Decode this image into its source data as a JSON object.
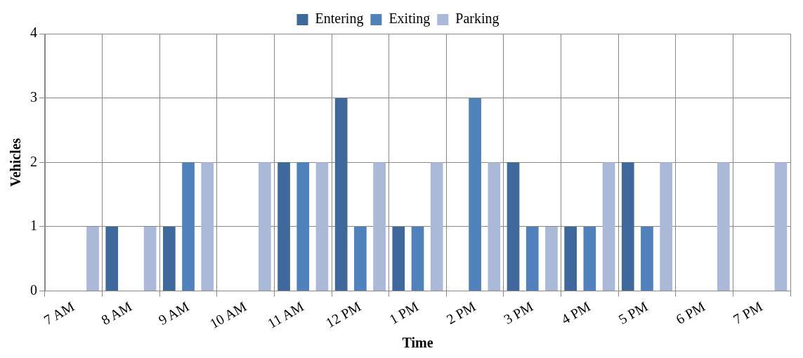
{
  "chart_data": {
    "type": "bar",
    "xlabel": "Time",
    "ylabel": "Vehicles",
    "categories": [
      "7 AM",
      "8 AM",
      "9 AM",
      "10 AM",
      "11 AM",
      "12 PM",
      "1 PM",
      "2 PM",
      "3 PM",
      "4 PM",
      "5 PM",
      "6 PM",
      "7 PM"
    ],
    "series": [
      {
        "name": "Entering",
        "color": "#3f689c",
        "values": [
          0,
          1,
          1,
          0,
          2,
          3,
          1,
          0,
          2,
          1,
          2,
          0,
          0
        ]
      },
      {
        "name": "Exiting",
        "color": "#4f81bd",
        "values": [
          0,
          0,
          2,
          0,
          2,
          1,
          1,
          3,
          1,
          1,
          1,
          0,
          0
        ]
      },
      {
        "name": "Parking",
        "color": "#aab9d8",
        "values": [
          1,
          1,
          2,
          2,
          2,
          2,
          2,
          2,
          1,
          2,
          2,
          2,
          2
        ]
      }
    ],
    "ylim": [
      0,
      4
    ],
    "yticks": [
      0,
      1,
      2,
      3,
      4
    ],
    "grid": true,
    "legend": "top"
  }
}
